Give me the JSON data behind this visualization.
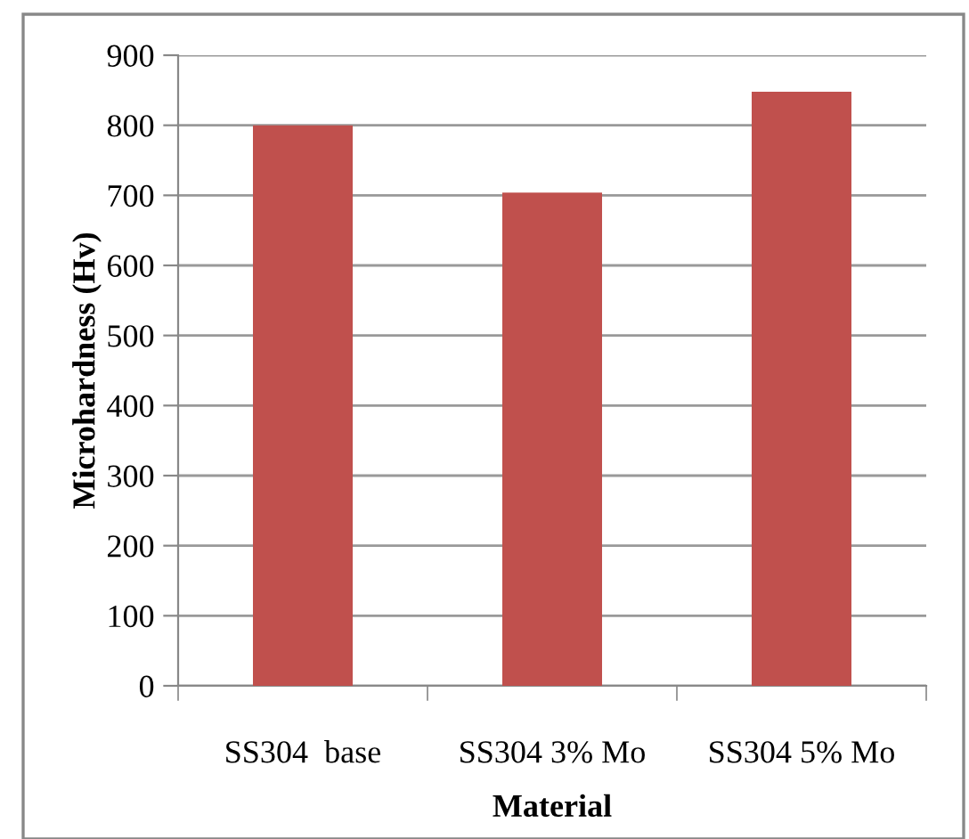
{
  "chart_data": {
    "type": "bar",
    "xlabel": "Material",
    "ylabel": "Microhardness (Hv)",
    "categories": [
      "SS304  base",
      "SS304 3% Mo",
      "SS304 5% Mo"
    ],
    "values": [
      800,
      704,
      848
    ],
    "color": "#c0504d",
    "ylim": [
      0,
      900
    ],
    "yticks": [
      0,
      100,
      200,
      300,
      400,
      500,
      600,
      700,
      800,
      900
    ],
    "grid": "y"
  }
}
